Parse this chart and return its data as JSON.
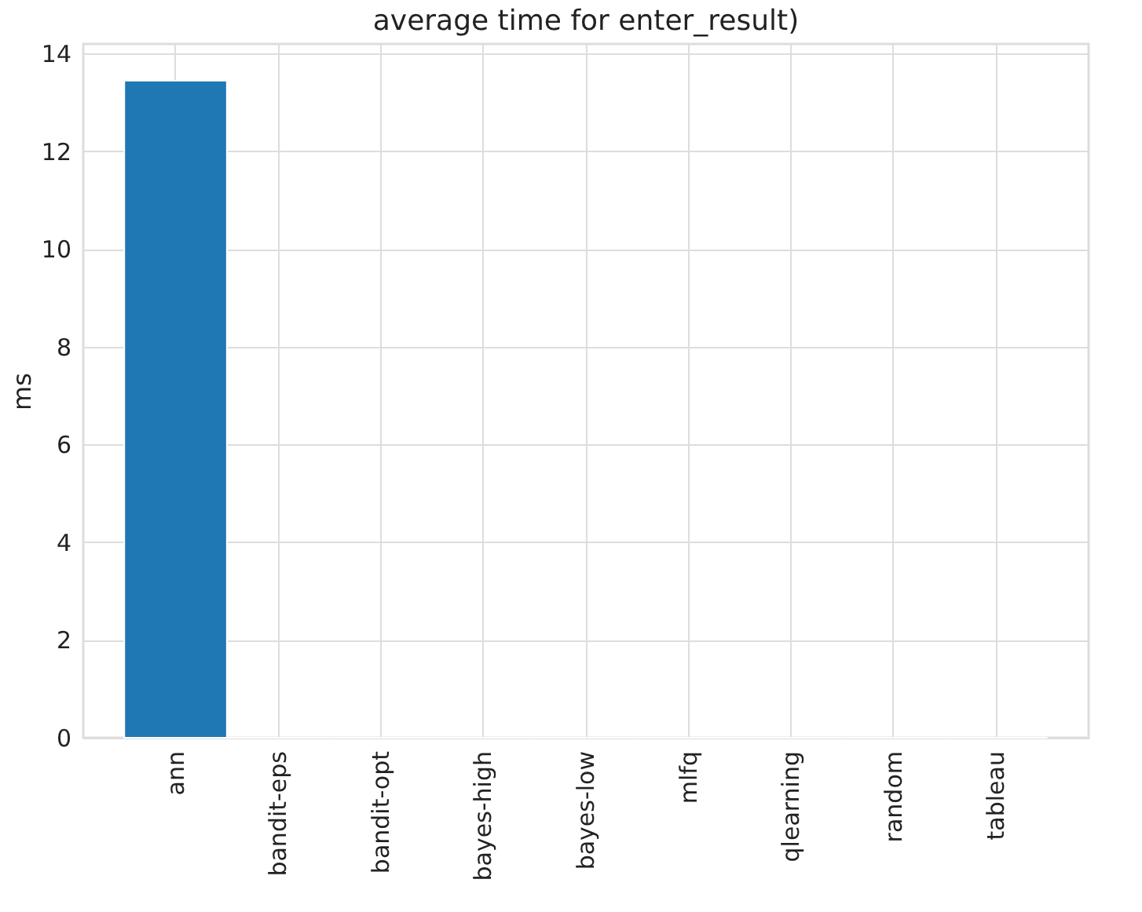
{
  "chart_data": {
    "type": "bar",
    "title": "average time for enter_result)",
    "ylabel": "ms",
    "categories": [
      "ann",
      "bandit-eps",
      "bandit-opt",
      "bayes-high",
      "bayes-low",
      "mlfq",
      "qlearning",
      "random",
      "tableau"
    ],
    "values": [
      13.45,
      0,
      0,
      0,
      0,
      0,
      0,
      0,
      0
    ],
    "color": "#1f77b4",
    "ylim": [
      0,
      14.2
    ],
    "yticks": [
      0,
      2,
      4,
      6,
      8,
      10,
      12,
      14
    ],
    "grid": true
  }
}
